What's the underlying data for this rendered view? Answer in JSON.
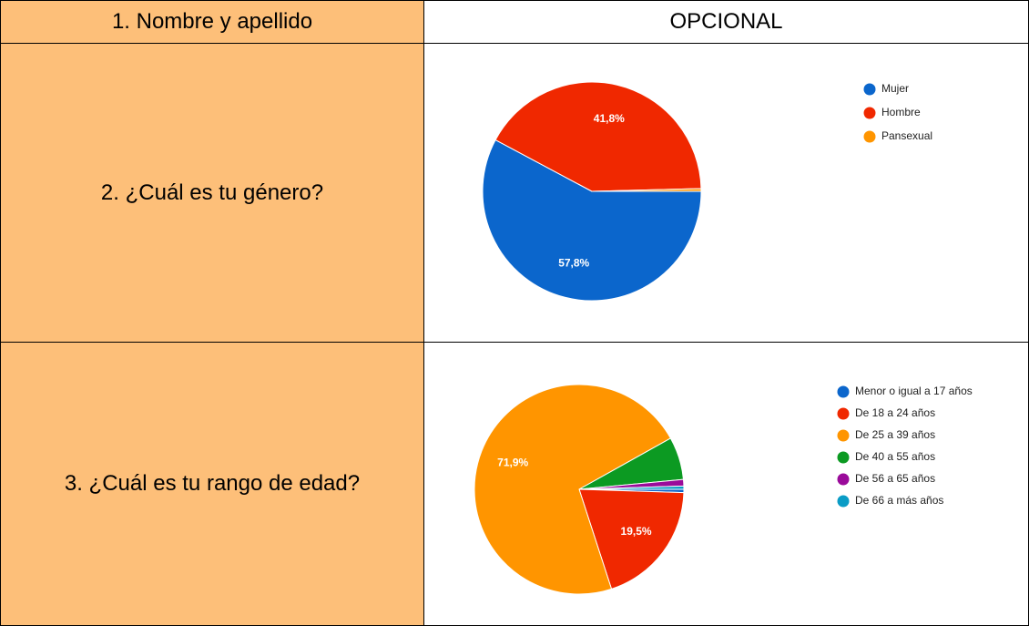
{
  "table": {
    "rows": [
      [
        "1. Nombre y apellido",
        "OPCIONAL"
      ],
      [
        "2. ¿Cuál es tu género?"
      ],
      [
        "3. ¿Cuál es tu rango de edad?"
      ]
    ]
  },
  "chart_data": [
    {
      "type": "pie",
      "categories": [
        "Mujer",
        "Hombre",
        "Pansexual"
      ],
      "values": [
        57.8,
        41.8,
        0.4
      ],
      "value_labels": [
        "57,8%",
        "41,8%",
        null
      ],
      "colors": [
        "#0b66cc",
        "#f02800",
        "#ff9500"
      ]
    },
    {
      "type": "pie",
      "categories": [
        "Menor o igual a 17 años",
        "De 18 a 24 años",
        "De 25 a 39 años",
        "De 40 a 55 años",
        "De 56 a 65 años",
        "De 66 a más años"
      ],
      "values": [
        0.5,
        19.5,
        71.9,
        6.6,
        1.0,
        0.5
      ],
      "value_labels": [
        null,
        "19,5%",
        "71,9%",
        null,
        null,
        null
      ],
      "colors": [
        "#0b66cc",
        "#f02800",
        "#ff9500",
        "#0c9a22",
        "#9a0b9a",
        "#0a9cc6"
      ]
    }
  ]
}
